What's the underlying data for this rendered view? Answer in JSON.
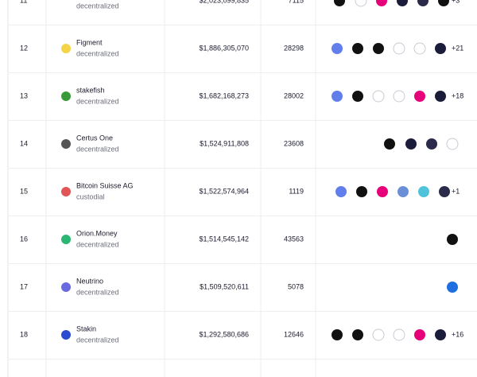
{
  "table": {
    "rows": [
      {
        "rank": "11",
        "type": "decentralized",
        "value": "$2,023,099,835",
        "count": "7115",
        "more": "+3"
      },
      {
        "rank": "12",
        "name": "Figment",
        "type": "decentralized",
        "value": "$1,886,305,070",
        "count": "28298",
        "more": "+21"
      },
      {
        "rank": "13",
        "name": "stakefish",
        "type": "decentralized",
        "value": "$1,682,168,273",
        "count": "28002",
        "more": "+18"
      },
      {
        "rank": "14",
        "name": "Certus One",
        "type": "decentralized",
        "value": "$1,524,911,808",
        "count": "23608"
      },
      {
        "rank": "15",
        "name": "Bitcoin Suisse AG",
        "type": "custodial",
        "value": "$1,522,574,964",
        "count": "1119",
        "more": "+1"
      },
      {
        "rank": "16",
        "name": "Orion.Money",
        "type": "decentralized",
        "value": "$1,514,545,142",
        "count": "43563"
      },
      {
        "rank": "17",
        "name": "Neutrino",
        "type": "decentralized",
        "value": "$1,509,520,611",
        "count": "5078"
      },
      {
        "rank": "18",
        "name": "Stakin",
        "type": "decentralized",
        "value": "$1,292,580,686",
        "count": "12646",
        "more": "+16"
      }
    ]
  }
}
